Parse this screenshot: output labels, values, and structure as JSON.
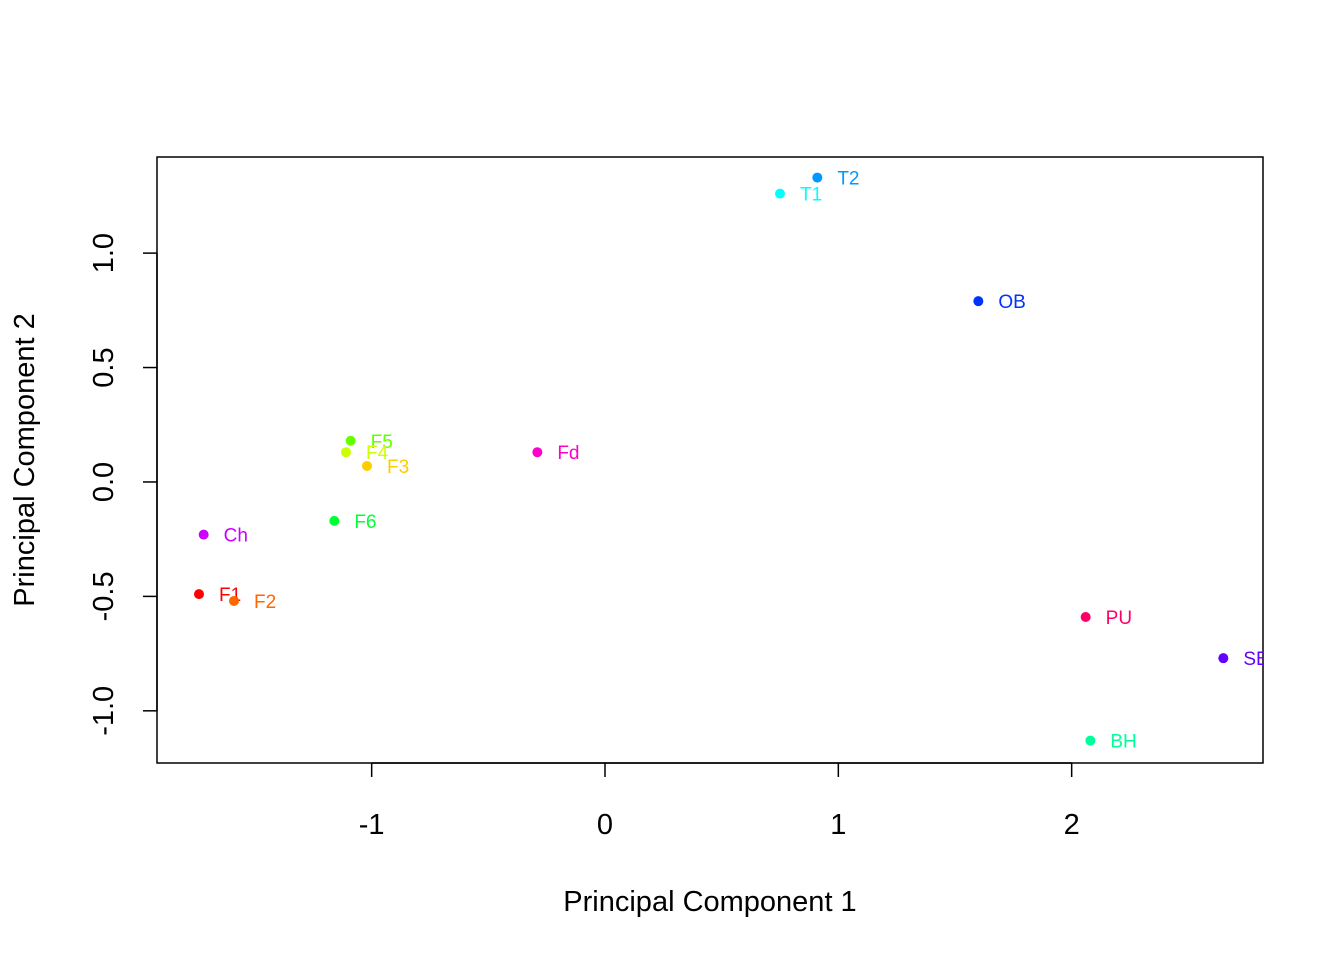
{
  "chart_data": {
    "type": "scatter",
    "title": "",
    "xlabel": "Principal Component 1",
    "ylabel": "Principal Component 2",
    "xlim": [
      -1.92,
      2.82
    ],
    "ylim": [
      -1.228,
      1.42
    ],
    "x_ticks": [
      {
        "value": -1,
        "label": "-1"
      },
      {
        "value": 0,
        "label": "0"
      },
      {
        "value": 1,
        "label": "1"
      },
      {
        "value": 2,
        "label": "2"
      }
    ],
    "y_ticks": [
      {
        "value": -1.0,
        "label": "-1.0"
      },
      {
        "value": -0.5,
        "label": "-0.5"
      },
      {
        "value": 0.0,
        "label": "0.0"
      },
      {
        "value": 0.5,
        "label": "0.5"
      },
      {
        "value": 1.0,
        "label": "1.0"
      }
    ],
    "grid": false,
    "points": [
      {
        "label": "T2",
        "x": 0.91,
        "y": 1.33,
        "color": "#0099FF"
      },
      {
        "label": "T1",
        "x": 0.75,
        "y": 1.26,
        "color": "#00FFFF"
      },
      {
        "label": "OB",
        "x": 1.6,
        "y": 0.79,
        "color": "#0033FF"
      },
      {
        "label": "F5",
        "x": -1.09,
        "y": 0.18,
        "color": "#66FF00"
      },
      {
        "label": "F4",
        "x": -1.11,
        "y": 0.13,
        "color": "#CCFF00"
      },
      {
        "label": "F3",
        "x": -1.02,
        "y": 0.07,
        "color": "#FFCC00"
      },
      {
        "label": "Fd",
        "x": -0.29,
        "y": 0.13,
        "color": "#FF00CC"
      },
      {
        "label": "F6",
        "x": -1.16,
        "y": -0.17,
        "color": "#00FF33"
      },
      {
        "label": "Ch",
        "x": -1.72,
        "y": -0.23,
        "color": "#CC00FF"
      },
      {
        "label": "F1",
        "x": -1.74,
        "y": -0.49,
        "color": "#FF0000"
      },
      {
        "label": "F2",
        "x": -1.59,
        "y": -0.52,
        "color": "#FF6600"
      },
      {
        "label": "PU",
        "x": 2.06,
        "y": -0.59,
        "color": "#FF0066"
      },
      {
        "label": "SB",
        "x": 2.65,
        "y": -0.77,
        "color": "#6600FF"
      },
      {
        "label": "BH",
        "x": 2.08,
        "y": -1.13,
        "color": "#00FF99"
      }
    ]
  }
}
